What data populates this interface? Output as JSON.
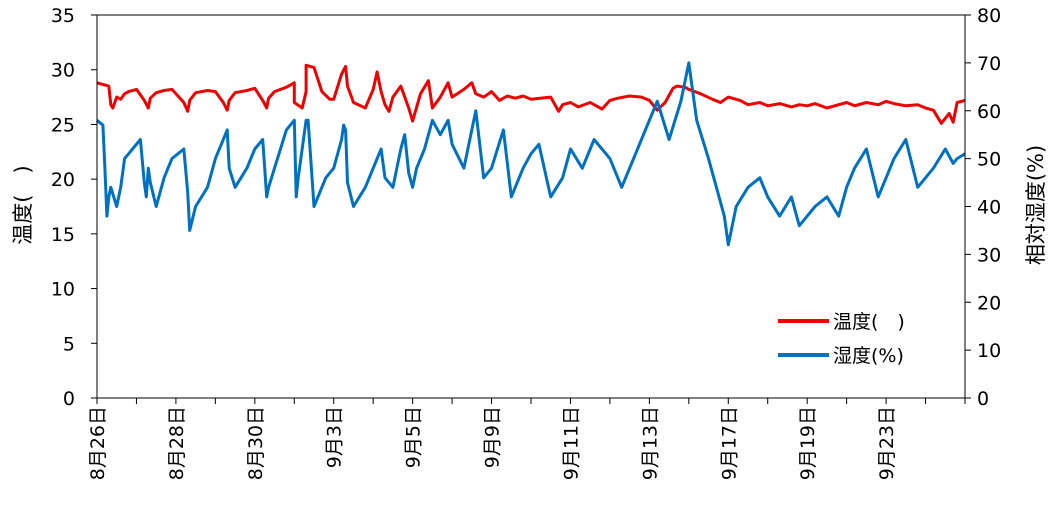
{
  "chart_data": {
    "type": "line",
    "title": "",
    "y_left_label": "温度(　)",
    "y_right_label": "相対湿度(%)",
    "y_left_lim": [
      0,
      35
    ],
    "y_left_ticks": [
      0,
      5,
      10,
      15,
      20,
      25,
      30,
      35
    ],
    "y_right_lim": [
      0,
      80
    ],
    "y_right_ticks": [
      0,
      10,
      20,
      30,
      40,
      50,
      60,
      70,
      80
    ],
    "x_lim": [
      0,
      22
    ],
    "x_tick_labels": [
      "8月26日",
      "8月28日",
      "8月30日",
      "9月3日",
      "9月5日",
      "9月9日",
      "9月11日",
      "9月13日",
      "9月17日",
      "9月19日",
      "9月23日"
    ],
    "x_tick_positions": [
      0,
      2,
      4,
      6,
      8,
      10,
      12,
      14,
      16,
      18,
      20
    ],
    "grid": false,
    "legend_position": "bottom-right",
    "series": [
      {
        "name": "温度(　)",
        "axis": "left",
        "color": "#ee0000",
        "x": [
          0,
          0.3,
          0.35,
          0.4,
          0.5,
          0.6,
          0.7,
          0.8,
          1.0,
          1.2,
          1.3,
          1.35,
          1.5,
          1.7,
          1.9,
          2.2,
          2.3,
          2.35,
          2.5,
          2.8,
          3.0,
          3.2,
          3.3,
          3.35,
          3.5,
          3.8,
          4.0,
          4.2,
          4.3,
          4.35,
          4.5,
          4.8,
          5.0,
          5.0,
          5.2,
          5.3,
          5.3,
          5.5,
          5.7,
          5.9,
          6.0,
          6.2,
          6.3,
          6.35,
          6.5,
          6.8,
          7.0,
          7.1,
          7.2,
          7.3,
          7.4,
          7.5,
          7.7,
          7.9,
          8.0,
          8.2,
          8.4,
          8.5,
          8.7,
          8.9,
          9.0,
          9.3,
          9.5,
          9.6,
          9.8,
          10.0,
          10.2,
          10.4,
          10.6,
          10.8,
          11.0,
          11.5,
          11.7,
          11.8,
          12.0,
          12.2,
          12.5,
          12.8,
          13.0,
          13.2,
          13.5,
          13.8,
          14.0,
          14.2,
          14.4,
          14.6,
          14.7,
          14.9,
          15.0,
          15.3,
          15.6,
          15.8,
          16.0,
          16.3,
          16.5,
          16.8,
          17.0,
          17.3,
          17.6,
          17.8,
          18.0,
          18.2,
          18.5,
          18.8,
          19.0,
          19.2,
          19.5,
          19.8,
          20.0,
          20.2,
          20.5,
          20.8,
          21.0,
          21.2,
          21.4,
          21.6,
          21.7,
          21.8,
          22.0
        ],
        "values": [
          28.8,
          28.5,
          26.8,
          26.5,
          27.5,
          27.3,
          27.8,
          28.0,
          28.2,
          27.2,
          26.5,
          27.4,
          27.9,
          28.1,
          28.2,
          27.0,
          26.2,
          27.2,
          27.9,
          28.1,
          28.0,
          27.0,
          26.3,
          27.2,
          27.9,
          28.1,
          28.3,
          27.2,
          26.5,
          27.4,
          28.0,
          28.4,
          28.8,
          27.0,
          26.5,
          28.0,
          30.4,
          30.2,
          28.0,
          27.3,
          27.3,
          29.6,
          30.3,
          28.5,
          27.0,
          26.5,
          28.2,
          29.8,
          28.0,
          26.8,
          26.2,
          27.5,
          28.5,
          26.5,
          25.3,
          27.8,
          29.0,
          26.5,
          27.5,
          28.8,
          27.5,
          28.2,
          28.8,
          27.8,
          27.5,
          28.0,
          27.2,
          27.6,
          27.4,
          27.6,
          27.3,
          27.5,
          26.2,
          26.8,
          27.0,
          26.6,
          27.0,
          26.4,
          27.2,
          27.4,
          27.6,
          27.5,
          27.2,
          26.3,
          27.0,
          28.3,
          28.5,
          28.4,
          28.2,
          27.8,
          27.3,
          27.0,
          27.5,
          27.2,
          26.8,
          27.0,
          26.7,
          26.9,
          26.6,
          26.8,
          26.7,
          26.9,
          26.5,
          26.8,
          27.0,
          26.7,
          27.0,
          26.8,
          27.1,
          26.9,
          26.7,
          26.8,
          26.5,
          26.3,
          25.1,
          26.0,
          25.2,
          27.0,
          27.2
        ]
      },
      {
        "name": "湿度(%)",
        "axis": "right",
        "color": "#0070c0",
        "x": [
          0,
          0.15,
          0.2,
          0.25,
          0.3,
          0.35,
          0.5,
          0.6,
          0.7,
          0.9,
          1.1,
          1.2,
          1.25,
          1.3,
          1.35,
          1.5,
          1.7,
          1.8,
          1.9,
          2.2,
          2.3,
          2.35,
          2.5,
          2.8,
          3.0,
          3.2,
          3.3,
          3.35,
          3.5,
          3.8,
          4.0,
          4.2,
          4.3,
          4.35,
          4.5,
          4.8,
          5.0,
          5.05,
          5.1,
          5.3,
          5.35,
          5.5,
          5.8,
          6.0,
          6.2,
          6.25,
          6.3,
          6.35,
          6.5,
          6.8,
          7.0,
          7.2,
          7.3,
          7.5,
          7.7,
          7.8,
          7.9,
          8.0,
          8.1,
          8.3,
          8.5,
          8.7,
          8.9,
          9.0,
          9.3,
          9.5,
          9.6,
          9.8,
          10.0,
          10.3,
          10.5,
          10.8,
          11.0,
          11.2,
          11.5,
          11.8,
          12.0,
          12.3,
          12.6,
          13.0,
          13.3,
          13.6,
          13.9,
          14.2,
          14.5,
          14.8,
          15.0,
          15.2,
          15.5,
          15.7,
          15.9,
          16.0,
          16.2,
          16.5,
          16.8,
          17.0,
          17.3,
          17.6,
          17.8,
          18.0,
          18.2,
          18.5,
          18.8,
          19.0,
          19.2,
          19.5,
          19.8,
          20.0,
          20.2,
          20.5,
          20.8,
          21.0,
          21.2,
          21.5,
          21.7,
          21.8,
          22.0
        ],
        "values": [
          58,
          57,
          48,
          38,
          42,
          44,
          40,
          44,
          50,
          52,
          54,
          45,
          42,
          48,
          45,
          40,
          46,
          48,
          50,
          52,
          43,
          35,
          40,
          44,
          50,
          54,
          56,
          48,
          44,
          48,
          52,
          54,
          42,
          44,
          48,
          56,
          58,
          42,
          46,
          58,
          58,
          40,
          46,
          48,
          54,
          57,
          56,
          45,
          40,
          44,
          48,
          52,
          46,
          44,
          52,
          55,
          47,
          44,
          48,
          52,
          58,
          55,
          58,
          53,
          48,
          56,
          60,
          46,
          48,
          56,
          42,
          48,
          51,
          53,
          42,
          46,
          52,
          48,
          54,
          50,
          44,
          50,
          56,
          62,
          54,
          62,
          70,
          58,
          50,
          44,
          38,
          32,
          40,
          44,
          46,
          42,
          38,
          42,
          36,
          38,
          40,
          42,
          38,
          44,
          48,
          52,
          42,
          46,
          50,
          54,
          44,
          46,
          48,
          52,
          49,
          50,
          51
        ]
      }
    ]
  },
  "legend": {
    "temp_label": "温度(　)",
    "rh_label": "湿度(%)"
  }
}
